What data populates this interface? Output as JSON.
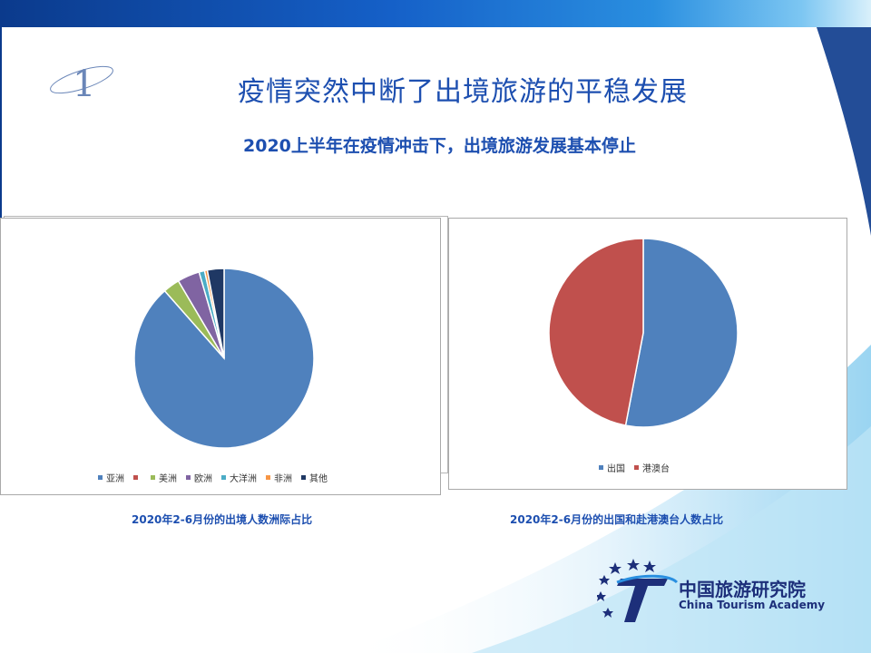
{
  "slide": {
    "section_number": "1",
    "title": "疫情突然中断了出境旅游的平稳发展",
    "subtitle": "2020上半年在疫情冲击下，出境旅游发展基本停止",
    "accent_color": "#1d4fb0"
  },
  "logo": {
    "name_cn": "中国旅游研究院",
    "name_en": "China Tourism Academy"
  },
  "chart_data": [
    {
      "type": "pie",
      "caption": "2020年2-6月份的出境人数洲际占比",
      "categories": [
        "亚洲",
        "美洲",
        "欧洲",
        "大洋洲",
        "非洲",
        "其他"
      ],
      "values": [
        88.5,
        3.0,
        4.0,
        1.0,
        0.5,
        3.0
      ],
      "colors": [
        "#4f81bd",
        "#9bbb59",
        "#8064a2",
        "#4bacc6",
        "#f79646",
        "#1f3864"
      ],
      "legend_labels": [
        "亚洲",
        "",
        "美洲",
        "欧洲",
        "大洋洲",
        "非洲",
        "其他"
      ],
      "legend_colors": [
        "#4f81bd",
        "#c0504d",
        "#9bbb59",
        "#8064a2",
        "#4bacc6",
        "#f79646",
        "#1f3864"
      ],
      "legend_position": "bottom"
    },
    {
      "type": "pie",
      "caption": "2020年2-6月份的出国和赴港澳台人数占比",
      "categories": [
        "出国",
        "港澳台"
      ],
      "values": [
        53,
        47
      ],
      "colors": [
        "#4f81bd",
        "#c0504d"
      ],
      "legend_position": "bottom"
    }
  ]
}
